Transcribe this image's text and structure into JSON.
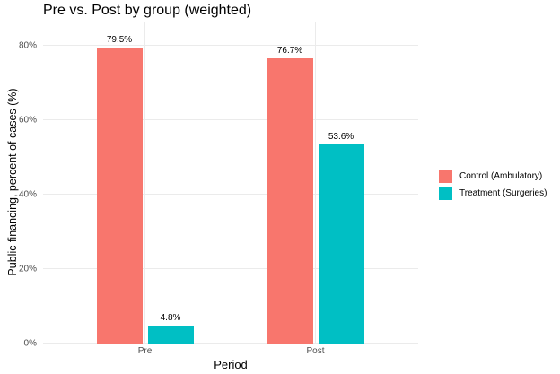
{
  "title": "Pre vs. Post by group (weighted)",
  "chart_data": {
    "type": "bar",
    "bar_layout": "grouped",
    "title": "Pre vs. Post by group (weighted)",
    "xlabel": "Period",
    "ylabel": "Public financing, percent of cases (%)",
    "categories": [
      "Pre",
      "Post"
    ],
    "series": [
      {
        "name": "Control (Ambulatory)",
        "color": "#F8766D",
        "values": [
          79.5,
          76.7
        ],
        "value_labels": [
          "79.5%",
          "76.7%"
        ]
      },
      {
        "name": "Treatment (Surgeries)",
        "color": "#00BFC4",
        "values": [
          4.8,
          53.6
        ],
        "value_labels": [
          "4.8%",
          "53.6%"
        ]
      }
    ],
    "yticks": [
      0,
      20,
      40,
      60,
      80
    ],
    "ytick_labels": [
      "0%",
      "20%",
      "40%",
      "60%",
      "80%"
    ],
    "ylim": [
      0,
      86.5
    ],
    "grid": "major horizontal lines at y ticks, vertical line at each category center",
    "legend_position": "right"
  },
  "colors": {
    "control": "#F8766D",
    "treatment": "#00BFC4",
    "gridline": "#EBEBEB",
    "tick_text": "#4D4D4D",
    "text": "#000000",
    "background": "#FFFFFF"
  }
}
